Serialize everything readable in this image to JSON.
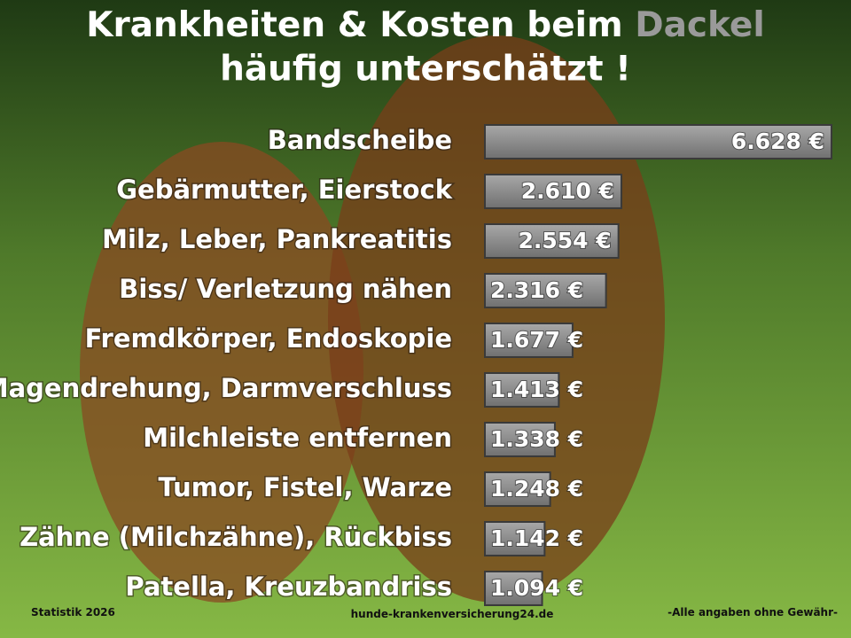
{
  "chart_data": {
    "type": "bar",
    "orientation": "horizontal",
    "title": "Krankheiten & Kosten beim",
    "title_highlight": "Dackel",
    "subtitle": "häufig unterschätzt !",
    "categories": [
      "Bandscheibe",
      "Gebärmutter, Eierstock",
      "Milz, Leber, Pankreatitis",
      "Biss/ Verletzung nähen",
      "Fremdkörper, Endoskopie",
      "Magendrehung, Darmverschluss",
      "Milchleiste entfernen",
      "Tumor, Fistel, Warze",
      "Zähne (Milchzähne), Rückbiss",
      "Patella, Kreuzbandriss"
    ],
    "values": [
      6628,
      2610,
      2554,
      2316,
      1677,
      1413,
      1338,
      1248,
      1142,
      1094
    ],
    "value_labels": [
      "6.628 €",
      "2.610 €",
      "2.554 €",
      "2.316 €",
      "1.677 €",
      "1.413 €",
      "1.338 €",
      "1.248 €",
      "1.142 €",
      "1.094 €"
    ],
    "color": "#8c8c8c"
  },
  "footer": {
    "left": "Statistik 2026",
    "center": "hunde-krankenversicherung24.de",
    "right": "-Alle angaben ohne Gewähr-"
  }
}
